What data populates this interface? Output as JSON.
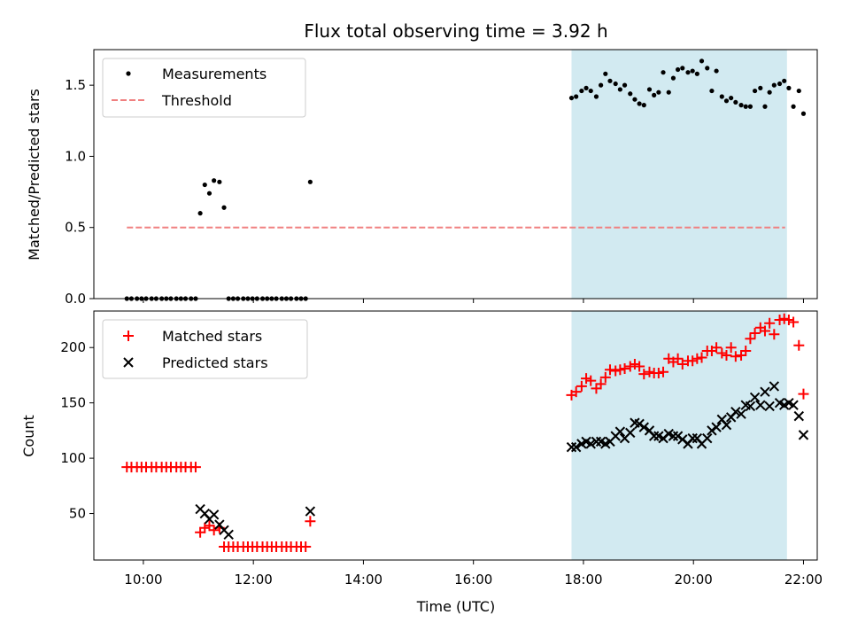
{
  "chart_data": [
    {
      "type": "scatter",
      "title": "Flux total observing time = 3.92 h",
      "xlabel": "",
      "ylabel": "Matched/Predicted stars",
      "xlim": [
        "09:06",
        "22:15"
      ],
      "ylim": [
        0,
        1.75
      ],
      "yticks": [
        "0.0",
        "0.5",
        "1.0",
        "1.5"
      ],
      "legend": "top-left",
      "grid": false,
      "shaded_region": {
        "x0": "17:47",
        "x1": "21:42",
        "color": "#add8e6"
      },
      "series": [
        {
          "name": "Measurements",
          "marker": "dot",
          "color": "#000000",
          "points": [
            [
              "09:42",
              0
            ],
            [
              "09:47",
              0
            ],
            [
              "09:53",
              0
            ],
            [
              "09:58",
              0
            ],
            [
              "10:03",
              0
            ],
            [
              "10:09",
              0
            ],
            [
              "10:14",
              0
            ],
            [
              "10:20",
              0
            ],
            [
              "10:25",
              0
            ],
            [
              "10:30",
              0
            ],
            [
              "10:36",
              0
            ],
            [
              "10:41",
              0
            ],
            [
              "10:46",
              0
            ],
            [
              "10:52",
              0
            ],
            [
              "10:57",
              0
            ],
            [
              "11:02",
              0.6
            ],
            [
              "11:07",
              0.8
            ],
            [
              "11:12",
              0.74
            ],
            [
              "11:17",
              0.83
            ],
            [
              "11:23",
              0.82
            ],
            [
              "11:28",
              0.64
            ],
            [
              "11:33",
              0
            ],
            [
              "11:38",
              0
            ],
            [
              "11:43",
              0
            ],
            [
              "11:49",
              0
            ],
            [
              "11:54",
              0
            ],
            [
              "11:59",
              0
            ],
            [
              "12:04",
              0
            ],
            [
              "12:10",
              0
            ],
            [
              "12:15",
              0
            ],
            [
              "12:20",
              0
            ],
            [
              "12:25",
              0
            ],
            [
              "12:31",
              0
            ],
            [
              "12:36",
              0
            ],
            [
              "12:41",
              0
            ],
            [
              "12:47",
              0
            ],
            [
              "12:52",
              0
            ],
            [
              "12:57",
              0
            ],
            [
              "13:02",
              0.82
            ],
            [
              "17:47",
              1.41
            ],
            [
              "17:52",
              1.42
            ],
            [
              "17:58",
              1.46
            ],
            [
              "18:03",
              1.48
            ],
            [
              "18:08",
              1.46
            ],
            [
              "18:14",
              1.42
            ],
            [
              "18:19",
              1.5
            ],
            [
              "18:24",
              1.58
            ],
            [
              "18:29",
              1.53
            ],
            [
              "18:35",
              1.51
            ],
            [
              "18:40",
              1.47
            ],
            [
              "18:45",
              1.5
            ],
            [
              "18:51",
              1.44
            ],
            [
              "18:56",
              1.4
            ],
            [
              "19:01",
              1.37
            ],
            [
              "19:06",
              1.36
            ],
            [
              "19:12",
              1.47
            ],
            [
              "19:17",
              1.43
            ],
            [
              "19:22",
              1.45
            ],
            [
              "19:27",
              1.59
            ],
            [
              "19:33",
              1.45
            ],
            [
              "19:38",
              1.55
            ],
            [
              "19:43",
              1.61
            ],
            [
              "19:48",
              1.62
            ],
            [
              "19:54",
              1.59
            ],
            [
              "19:59",
              1.6
            ],
            [
              "20:04",
              1.58
            ],
            [
              "20:09",
              1.67
            ],
            [
              "20:15",
              1.62
            ],
            [
              "20:20",
              1.46
            ],
            [
              "20:25",
              1.6
            ],
            [
              "20:31",
              1.42
            ],
            [
              "20:36",
              1.39
            ],
            [
              "20:41",
              1.41
            ],
            [
              "20:46",
              1.38
            ],
            [
              "20:52",
              1.36
            ],
            [
              "20:57",
              1.35
            ],
            [
              "21:02",
              1.35
            ],
            [
              "21:07",
              1.46
            ],
            [
              "21:13",
              1.48
            ],
            [
              "21:18",
              1.35
            ],
            [
              "21:23",
              1.45
            ],
            [
              "21:28",
              1.5
            ],
            [
              "21:34",
              1.51
            ],
            [
              "21:39",
              1.53
            ],
            [
              "21:44",
              1.48
            ],
            [
              "21:49",
              1.35
            ],
            [
              "21:55",
              1.46
            ],
            [
              "22:00",
              1.3
            ]
          ]
        },
        {
          "name": "Threshold",
          "marker": "dashed-line",
          "color": "#f08080",
          "points": [
            [
              "09:42",
              0.5
            ],
            [
              "21:40",
              0.5
            ]
          ]
        }
      ]
    },
    {
      "type": "scatter",
      "title": "",
      "xlabel": "Time (UTC)",
      "ylabel": "Count",
      "xlim": [
        "09:06",
        "22:15"
      ],
      "xticks": [
        "10:00",
        "12:00",
        "14:00",
        "16:00",
        "18:00",
        "20:00",
        "22:00"
      ],
      "ylim": [
        8,
        233
      ],
      "yticks": [
        "50",
        "100",
        "150",
        "200"
      ],
      "legend": "top-left",
      "grid": false,
      "shaded_region": {
        "x0": "17:47",
        "x1": "21:42",
        "color": "#add8e6"
      },
      "series": [
        {
          "name": "Matched stars",
          "marker": "plus",
          "color": "#ff0000",
          "points": [
            [
              "09:42",
              92
            ],
            [
              "09:47",
              92
            ],
            [
              "09:53",
              92
            ],
            [
              "09:58",
              92
            ],
            [
              "10:03",
              92
            ],
            [
              "10:09",
              92
            ],
            [
              "10:14",
              92
            ],
            [
              "10:20",
              92
            ],
            [
              "10:25",
              92
            ],
            [
              "10:30",
              92
            ],
            [
              "10:36",
              92
            ],
            [
              "10:41",
              92
            ],
            [
              "10:46",
              92
            ],
            [
              "10:52",
              92
            ],
            [
              "10:57",
              92
            ],
            [
              "11:02",
              33
            ],
            [
              "11:07",
              37
            ],
            [
              "11:12",
              39
            ],
            [
              "11:17",
              35
            ],
            [
              "11:23",
              37
            ],
            [
              "11:28",
              20
            ],
            [
              "11:33",
              20
            ],
            [
              "11:38",
              20
            ],
            [
              "11:43",
              20
            ],
            [
              "11:49",
              20
            ],
            [
              "11:54",
              20
            ],
            [
              "11:59",
              20
            ],
            [
              "12:04",
              20
            ],
            [
              "12:10",
              20
            ],
            [
              "12:15",
              20
            ],
            [
              "12:20",
              20
            ],
            [
              "12:25",
              20
            ],
            [
              "12:31",
              20
            ],
            [
              "12:36",
              20
            ],
            [
              "12:41",
              20
            ],
            [
              "12:47",
              20
            ],
            [
              "12:52",
              20
            ],
            [
              "12:57",
              20
            ],
            [
              "13:02",
              43
            ],
            [
              "17:47",
              157
            ],
            [
              "17:52",
              160
            ],
            [
              "17:58",
              165
            ],
            [
              "18:03",
              172
            ],
            [
              "18:08",
              170
            ],
            [
              "18:14",
              163
            ],
            [
              "18:19",
              167
            ],
            [
              "18:24",
              173
            ],
            [
              "18:29",
              180
            ],
            [
              "18:35",
              179
            ],
            [
              "18:40",
              180
            ],
            [
              "18:45",
              181
            ],
            [
              "18:51",
              183
            ],
            [
              "18:56",
              185
            ],
            [
              "19:01",
              183
            ],
            [
              "19:06",
              176
            ],
            [
              "19:12",
              178
            ],
            [
              "19:17",
              177
            ],
            [
              "19:22",
              177
            ],
            [
              "19:27",
              178
            ],
            [
              "19:33",
              190
            ],
            [
              "19:38",
              187
            ],
            [
              "19:43",
              190
            ],
            [
              "19:48",
              185
            ],
            [
              "19:54",
              188
            ],
            [
              "19:59",
              188
            ],
            [
              "20:04",
              190
            ],
            [
              "20:09",
              191
            ],
            [
              "20:15",
              197
            ],
            [
              "20:20",
              197
            ],
            [
              "20:25",
              200
            ],
            [
              "20:31",
              195
            ],
            [
              "20:36",
              193
            ],
            [
              "20:41",
              200
            ],
            [
              "20:46",
              192
            ],
            [
              "20:52",
              193
            ],
            [
              "20:57",
              197
            ],
            [
              "21:02",
              208
            ],
            [
              "21:07",
              213
            ],
            [
              "21:13",
              218
            ],
            [
              "21:18",
              215
            ],
            [
              "21:23",
              222
            ],
            [
              "21:28",
              212
            ],
            [
              "21:34",
              225
            ],
            [
              "21:39",
              226
            ],
            [
              "21:44",
              225
            ],
            [
              "21:49",
              223
            ],
            [
              "21:55",
              202
            ],
            [
              "22:00",
              158
            ]
          ]
        },
        {
          "name": "Predicted stars",
          "marker": "cross",
          "color": "#000000",
          "points": [
            [
              "11:02",
              54
            ],
            [
              "11:07",
              50
            ],
            [
              "11:12",
              45
            ],
            [
              "11:17",
              49
            ],
            [
              "11:23",
              40
            ],
            [
              "11:28",
              35
            ],
            [
              "11:33",
              31
            ],
            [
              "13:02",
              52
            ],
            [
              "17:47",
              110
            ],
            [
              "17:52",
              110
            ],
            [
              "17:58",
              113
            ],
            [
              "18:03",
              115
            ],
            [
              "18:08",
              113
            ],
            [
              "18:14",
              115
            ],
            [
              "18:19",
              115
            ],
            [
              "18:24",
              113
            ],
            [
              "18:29",
              115
            ],
            [
              "18:35",
              120
            ],
            [
              "18:40",
              124
            ],
            [
              "18:45",
              118
            ],
            [
              "18:51",
              123
            ],
            [
              "18:56",
              132
            ],
            [
              "19:01",
              131
            ],
            [
              "19:06",
              128
            ],
            [
              "19:12",
              125
            ],
            [
              "19:17",
              120
            ],
            [
              "19:22",
              120
            ],
            [
              "19:27",
              118
            ],
            [
              "19:33",
              122
            ],
            [
              "19:38",
              120
            ],
            [
              "19:43",
              120
            ],
            [
              "19:48",
              117
            ],
            [
              "19:54",
              113
            ],
            [
              "19:59",
              118
            ],
            [
              "20:04",
              118
            ],
            [
              "20:09",
              113
            ],
            [
              "20:15",
              118
            ],
            [
              "20:20",
              125
            ],
            [
              "20:25",
              128
            ],
            [
              "20:31",
              135
            ],
            [
              "20:36",
              130
            ],
            [
              "20:41",
              137
            ],
            [
              "20:46",
              142
            ],
            [
              "20:52",
              140
            ],
            [
              "20:57",
              148
            ],
            [
              "21:02",
              147
            ],
            [
              "21:07",
              155
            ],
            [
              "21:13",
              148
            ],
            [
              "21:18",
              160
            ],
            [
              "21:23",
              147
            ],
            [
              "21:28",
              165
            ],
            [
              "21:34",
              150
            ],
            [
              "21:39",
              148
            ],
            [
              "21:44",
              150
            ],
            [
              "21:49",
              148
            ],
            [
              "21:55",
              138
            ],
            [
              "22:00",
              121
            ]
          ]
        }
      ]
    }
  ]
}
